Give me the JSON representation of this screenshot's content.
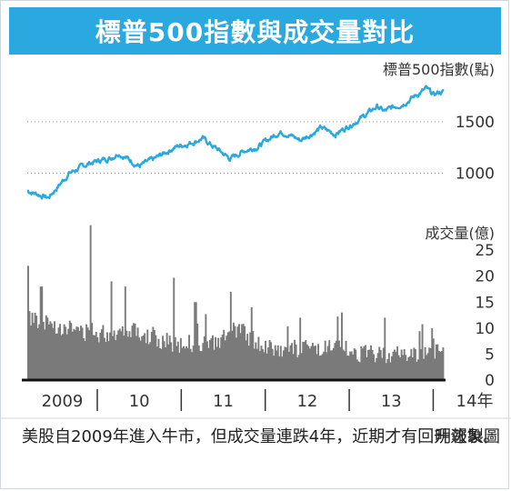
{
  "header": {
    "title": "標普500指數與成交量對比"
  },
  "chart_data": [
    {
      "type": "line",
      "title": "",
      "ylabel": "標普500指數(點)",
      "ylim": [
        650,
        1800
      ],
      "y_ticks": [
        "1500",
        "1000"
      ],
      "y_tick_values": [
        1500,
        1000
      ],
      "grid": true,
      "color": "#29a9df",
      "x": [
        "2009-03",
        "2009-06",
        "2009-09",
        "2009-12",
        "2010-03",
        "2010-04",
        "2010-07",
        "2010-09",
        "2010-12",
        "2011-03",
        "2011-04",
        "2011-08",
        "2011-10",
        "2011-12",
        "2012-03",
        "2012-04",
        "2012-06",
        "2012-09",
        "2012-11",
        "2012-12",
        "2013-03",
        "2013-05",
        "2013-06",
        "2013-09",
        "2013-12",
        "2014-01",
        "2014-02"
      ],
      "values": [
        830,
        760,
        1000,
        1100,
        1150,
        1200,
        1070,
        1130,
        1250,
        1310,
        1340,
        1140,
        1220,
        1260,
        1400,
        1390,
        1320,
        1440,
        1380,
        1420,
        1550,
        1650,
        1600,
        1690,
        1820,
        1760,
        1790
      ]
    },
    {
      "type": "bar",
      "title": "",
      "ylabel": "成交量(億)",
      "ylim": [
        0,
        28
      ],
      "y_ticks": [
        "25",
        "20",
        "15",
        "10",
        "5",
        "0"
      ],
      "y_tick_values": [
        25,
        20,
        15,
        10,
        5,
        0
      ],
      "x_ticks": [
        "2009",
        "10",
        "11",
        "12",
        "13",
        "14年"
      ],
      "color": "#7a7a7a",
      "monthly_avg_x": [
        "2009-03",
        "2009-06",
        "2009-09",
        "2009-12",
        "2010-03",
        "2010-06",
        "2010-09",
        "2010-12",
        "2011-03",
        "2011-06",
        "2011-09",
        "2011-12",
        "2012-03",
        "2012-06",
        "2012-09",
        "2012-12",
        "2013-03",
        "2013-06",
        "2013-09",
        "2013-12",
        "2014-02"
      ],
      "monthly_avg_values": [
        12,
        11,
        10,
        9,
        9,
        10,
        8,
        7,
        7,
        7,
        10,
        7,
        6,
        6,
        6,
        6,
        5,
        5,
        5,
        5,
        6
      ],
      "spikes_x": [
        "2009-03",
        "2009-05",
        "2009-12",
        "2010-03",
        "2010-05",
        "2010-12",
        "2011-03",
        "2011-08",
        "2011-11",
        "2012-06",
        "2012-12",
        "2013-06",
        "2014-01"
      ],
      "spikes_values": [
        22,
        18,
        26,
        19,
        18,
        16,
        15,
        17,
        14,
        12,
        13,
        12,
        8
      ]
    }
  ],
  "caption": {
    "text": "美股自2009年進入牛市，但成交量連跌4年，近期才有回升迹象。",
    "credit": "明報製圖"
  }
}
